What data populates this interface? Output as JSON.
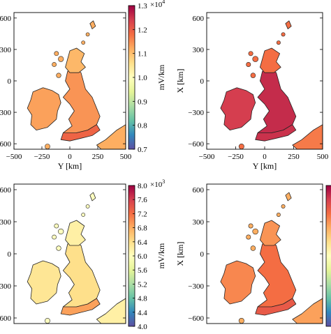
{
  "colors": {
    "scale": [
      "#5e4fa2",
      "#3288bd",
      "#66c2a5",
      "#abdda4",
      "#e6f598",
      "#ffffbf",
      "#fee08b",
      "#fdae61",
      "#f46d43",
      "#d53e4f",
      "#9e0142"
    ],
    "coast": "#222222",
    "background": "#ffffff"
  },
  "panels": [
    {
      "id": "top-left",
      "ylabel": "",
      "xlabel": "Y [km]",
      "yticks": [
        "600",
        "300",
        "0",
        "−300",
        "−600"
      ],
      "xticks": [
        "−500",
        "−250",
        "0",
        "250",
        "500"
      ],
      "fill": {
        "ireland": 0.72,
        "britain": 0.74,
        "scotland": 0.68,
        "south": 0.82,
        "islands": 0.7,
        "continent": 0.7
      },
      "colorbar": {
        "unit": "mV/km",
        "exponent_base": "×10",
        "exponent_power": "4",
        "ticks": [
          "1.3",
          "1.2",
          "1.1",
          "1.0",
          "0.9",
          "0.8",
          "0.7"
        ]
      }
    },
    {
      "id": "top-right",
      "ylabel": "X [km]",
      "xlabel": "Y [km]",
      "yticks": [
        "600",
        "300",
        "0",
        "−300",
        "−600"
      ],
      "xticks": [
        "−500",
        "−250",
        "0",
        "250",
        "500"
      ],
      "fill": {
        "ireland": 0.9,
        "britain": 0.93,
        "scotland": 0.8,
        "south": 0.92,
        "islands": 0.8,
        "continent": 0.78
      }
    },
    {
      "id": "bottom-left",
      "ylabel": "",
      "xlabel": "",
      "yticks": [
        "600",
        "300",
        "0",
        "−300",
        "−600"
      ],
      "xticks": [],
      "fill": {
        "ireland": 0.58,
        "britain": 0.6,
        "scotland": 0.55,
        "south": 0.72,
        "islands": 0.5,
        "continent": 0.55
      },
      "colorbar": {
        "unit": "mV/km",
        "exponent_base": "×10",
        "exponent_power": "3",
        "ticks": [
          "8.0",
          "7.6",
          "7.2",
          "6.8",
          "6.4",
          "6.0",
          "5.6",
          "5.2",
          "4.8",
          "4.4",
          "4.0"
        ]
      }
    },
    {
      "id": "bottom-right",
      "ylabel": "X [km]",
      "xlabel": "",
      "yticks": [
        "600",
        "300",
        "0",
        "−300",
        "−600"
      ],
      "xticks": [],
      "fill": {
        "ireland": 0.76,
        "britain": 0.8,
        "scotland": 0.74,
        "south": 0.84,
        "islands": 0.7,
        "continent": 0.72
      }
    }
  ]
}
